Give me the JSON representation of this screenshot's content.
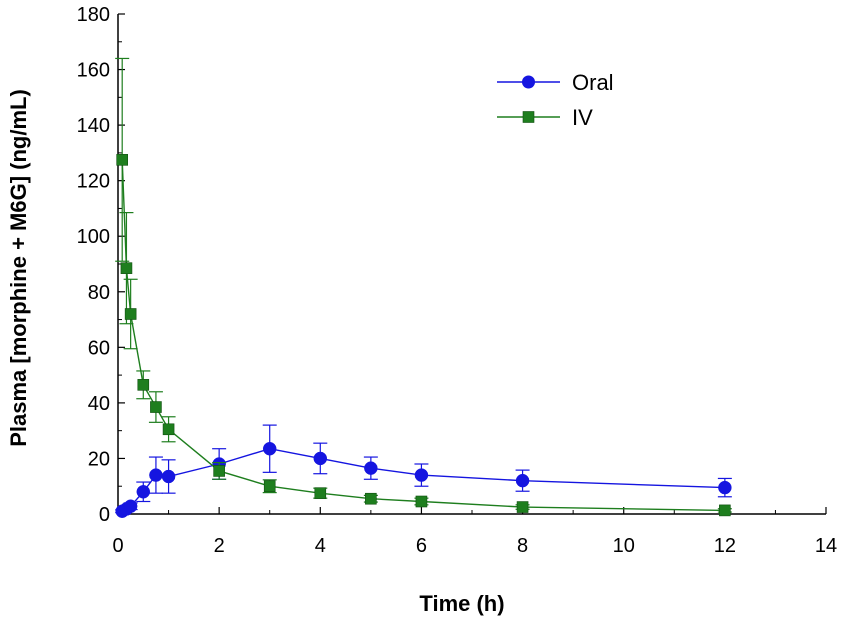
{
  "chart_data": {
    "type": "line",
    "title": "",
    "xlabel": "Time (h)",
    "ylabel": "Plasma [morphine + M6G] (ng/mL)",
    "xlim": [
      0,
      14
    ],
    "ylim": [
      0,
      180
    ],
    "xticks": [
      0,
      2,
      4,
      6,
      8,
      10,
      12,
      14
    ],
    "yticks": [
      0,
      20,
      40,
      60,
      80,
      100,
      120,
      140,
      160,
      180
    ],
    "grid": false,
    "legend_position": "top-right",
    "series": [
      {
        "name": "Oral",
        "marker": "circle",
        "color": "#1515e0",
        "x": [
          0.083,
          0.167,
          0.25,
          0.5,
          0.75,
          1,
          2,
          3,
          4,
          5,
          6,
          8,
          12
        ],
        "y": [
          1,
          1.8,
          2.8,
          8,
          14,
          13.5,
          18,
          23.5,
          20,
          16.5,
          14,
          12,
          9.5
        ],
        "err": [
          0.5,
          0.8,
          1.2,
          3.5,
          6.5,
          6,
          5.5,
          8.5,
          5.5,
          4,
          4,
          3.8,
          3.3
        ]
      },
      {
        "name": "IV",
        "marker": "square",
        "color": "#1e7e1e",
        "x": [
          0.083,
          0.167,
          0.25,
          0.5,
          0.75,
          1,
          2,
          3,
          4,
          5,
          6,
          8,
          12
        ],
        "y": [
          127.5,
          88.5,
          72,
          46.5,
          38.5,
          30.5,
          15.5,
          10,
          7.5,
          5.5,
          4.5,
          2.5,
          1.3
        ],
        "err": [
          36.5,
          20,
          12.5,
          5,
          5.5,
          4.5,
          3,
          2.3,
          1.8,
          1.2,
          1.2,
          0.8,
          0.6
        ]
      }
    ]
  }
}
